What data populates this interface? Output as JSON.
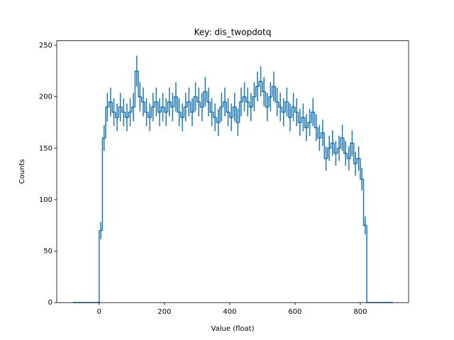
{
  "chart_data": {
    "type": "histogram",
    "title": "Key: dis_twopdotq",
    "x_label": "Value (float)",
    "y_label": "Counts",
    "color": "#1f77b4",
    "bins": [
      -80,
      -70,
      -60,
      -50,
      -40,
      -30,
      -20,
      -10,
      0,
      10,
      20,
      30,
      40,
      50,
      60,
      70,
      80,
      90,
      100,
      110,
      120,
      130,
      140,
      150,
      160,
      170,
      180,
      190,
      200,
      210,
      220,
      230,
      240,
      250,
      260,
      270,
      280,
      290,
      300,
      310,
      320,
      330,
      340,
      350,
      360,
      370,
      380,
      390,
      400,
      410,
      420,
      430,
      440,
      450,
      460,
      470,
      480,
      490,
      500,
      510,
      520,
      530,
      540,
      550,
      560,
      570,
      580,
      590,
      600,
      610,
      620,
      630,
      640,
      650,
      660,
      670,
      680,
      690,
      700,
      710,
      720,
      730,
      740,
      750,
      760,
      770,
      780,
      790,
      800,
      810,
      820,
      830,
      840,
      850,
      860,
      870,
      880,
      890,
      900
    ],
    "values": [
      0,
      0,
      0,
      0,
      0,
      0,
      0,
      0,
      70,
      160,
      190,
      195,
      185,
      180,
      190,
      185,
      180,
      185,
      190,
      225,
      200,
      195,
      185,
      180,
      190,
      195,
      185,
      190,
      185,
      195,
      190,
      200,
      185,
      180,
      190,
      195,
      185,
      200,
      195,
      190,
      205,
      195,
      185,
      180,
      175,
      190,
      195,
      185,
      180,
      190,
      175,
      195,
      200,
      195,
      190,
      200,
      210,
      215,
      205,
      190,
      200,
      210,
      195,
      190,
      185,
      195,
      180,
      190,
      185,
      175,
      180,
      170,
      175,
      185,
      170,
      160,
      165,
      140,
      150,
      155,
      145,
      150,
      160,
      145,
      140,
      155,
      135,
      140,
      120,
      75,
      0,
      0,
      0,
      0,
      0,
      0,
      0,
      0
    ],
    "errors": [
      0,
      0,
      0,
      0,
      0,
      0,
      0,
      0,
      8.4,
      12.6,
      13.8,
      14,
      13.6,
      13.4,
      13.8,
      13.6,
      13.4,
      13.6,
      13.8,
      15,
      14.1,
      14,
      13.6,
      13.4,
      13.8,
      14,
      13.6,
      13.8,
      13.6,
      14,
      13.8,
      14.1,
      13.6,
      13.4,
      13.8,
      14,
      13.6,
      14.1,
      14,
      13.8,
      14.3,
      14,
      13.6,
      13.4,
      13.2,
      13.8,
      14,
      13.6,
      13.4,
      13.8,
      13.2,
      14,
      14.1,
      14,
      13.8,
      14.1,
      14.5,
      14.7,
      14.3,
      13.8,
      14.1,
      14.5,
      14,
      13.8,
      13.6,
      14,
      13.4,
      13.8,
      13.6,
      13.2,
      13.4,
      13,
      13.2,
      13.6,
      13,
      12.6,
      12.8,
      11.8,
      12.2,
      12.4,
      12,
      12.2,
      12.6,
      12,
      11.8,
      12.4,
      11.6,
      11.8,
      11,
      8.7,
      0,
      0,
      0,
      0,
      0,
      0,
      0,
      0
    ],
    "xlim": [
      -130,
      948
    ],
    "xticks": [
      0,
      200,
      400,
      600,
      800
    ],
    "ylim": [
      0,
      254.4
    ],
    "yticks": [
      0,
      50,
      100,
      150,
      200,
      250
    ]
  }
}
